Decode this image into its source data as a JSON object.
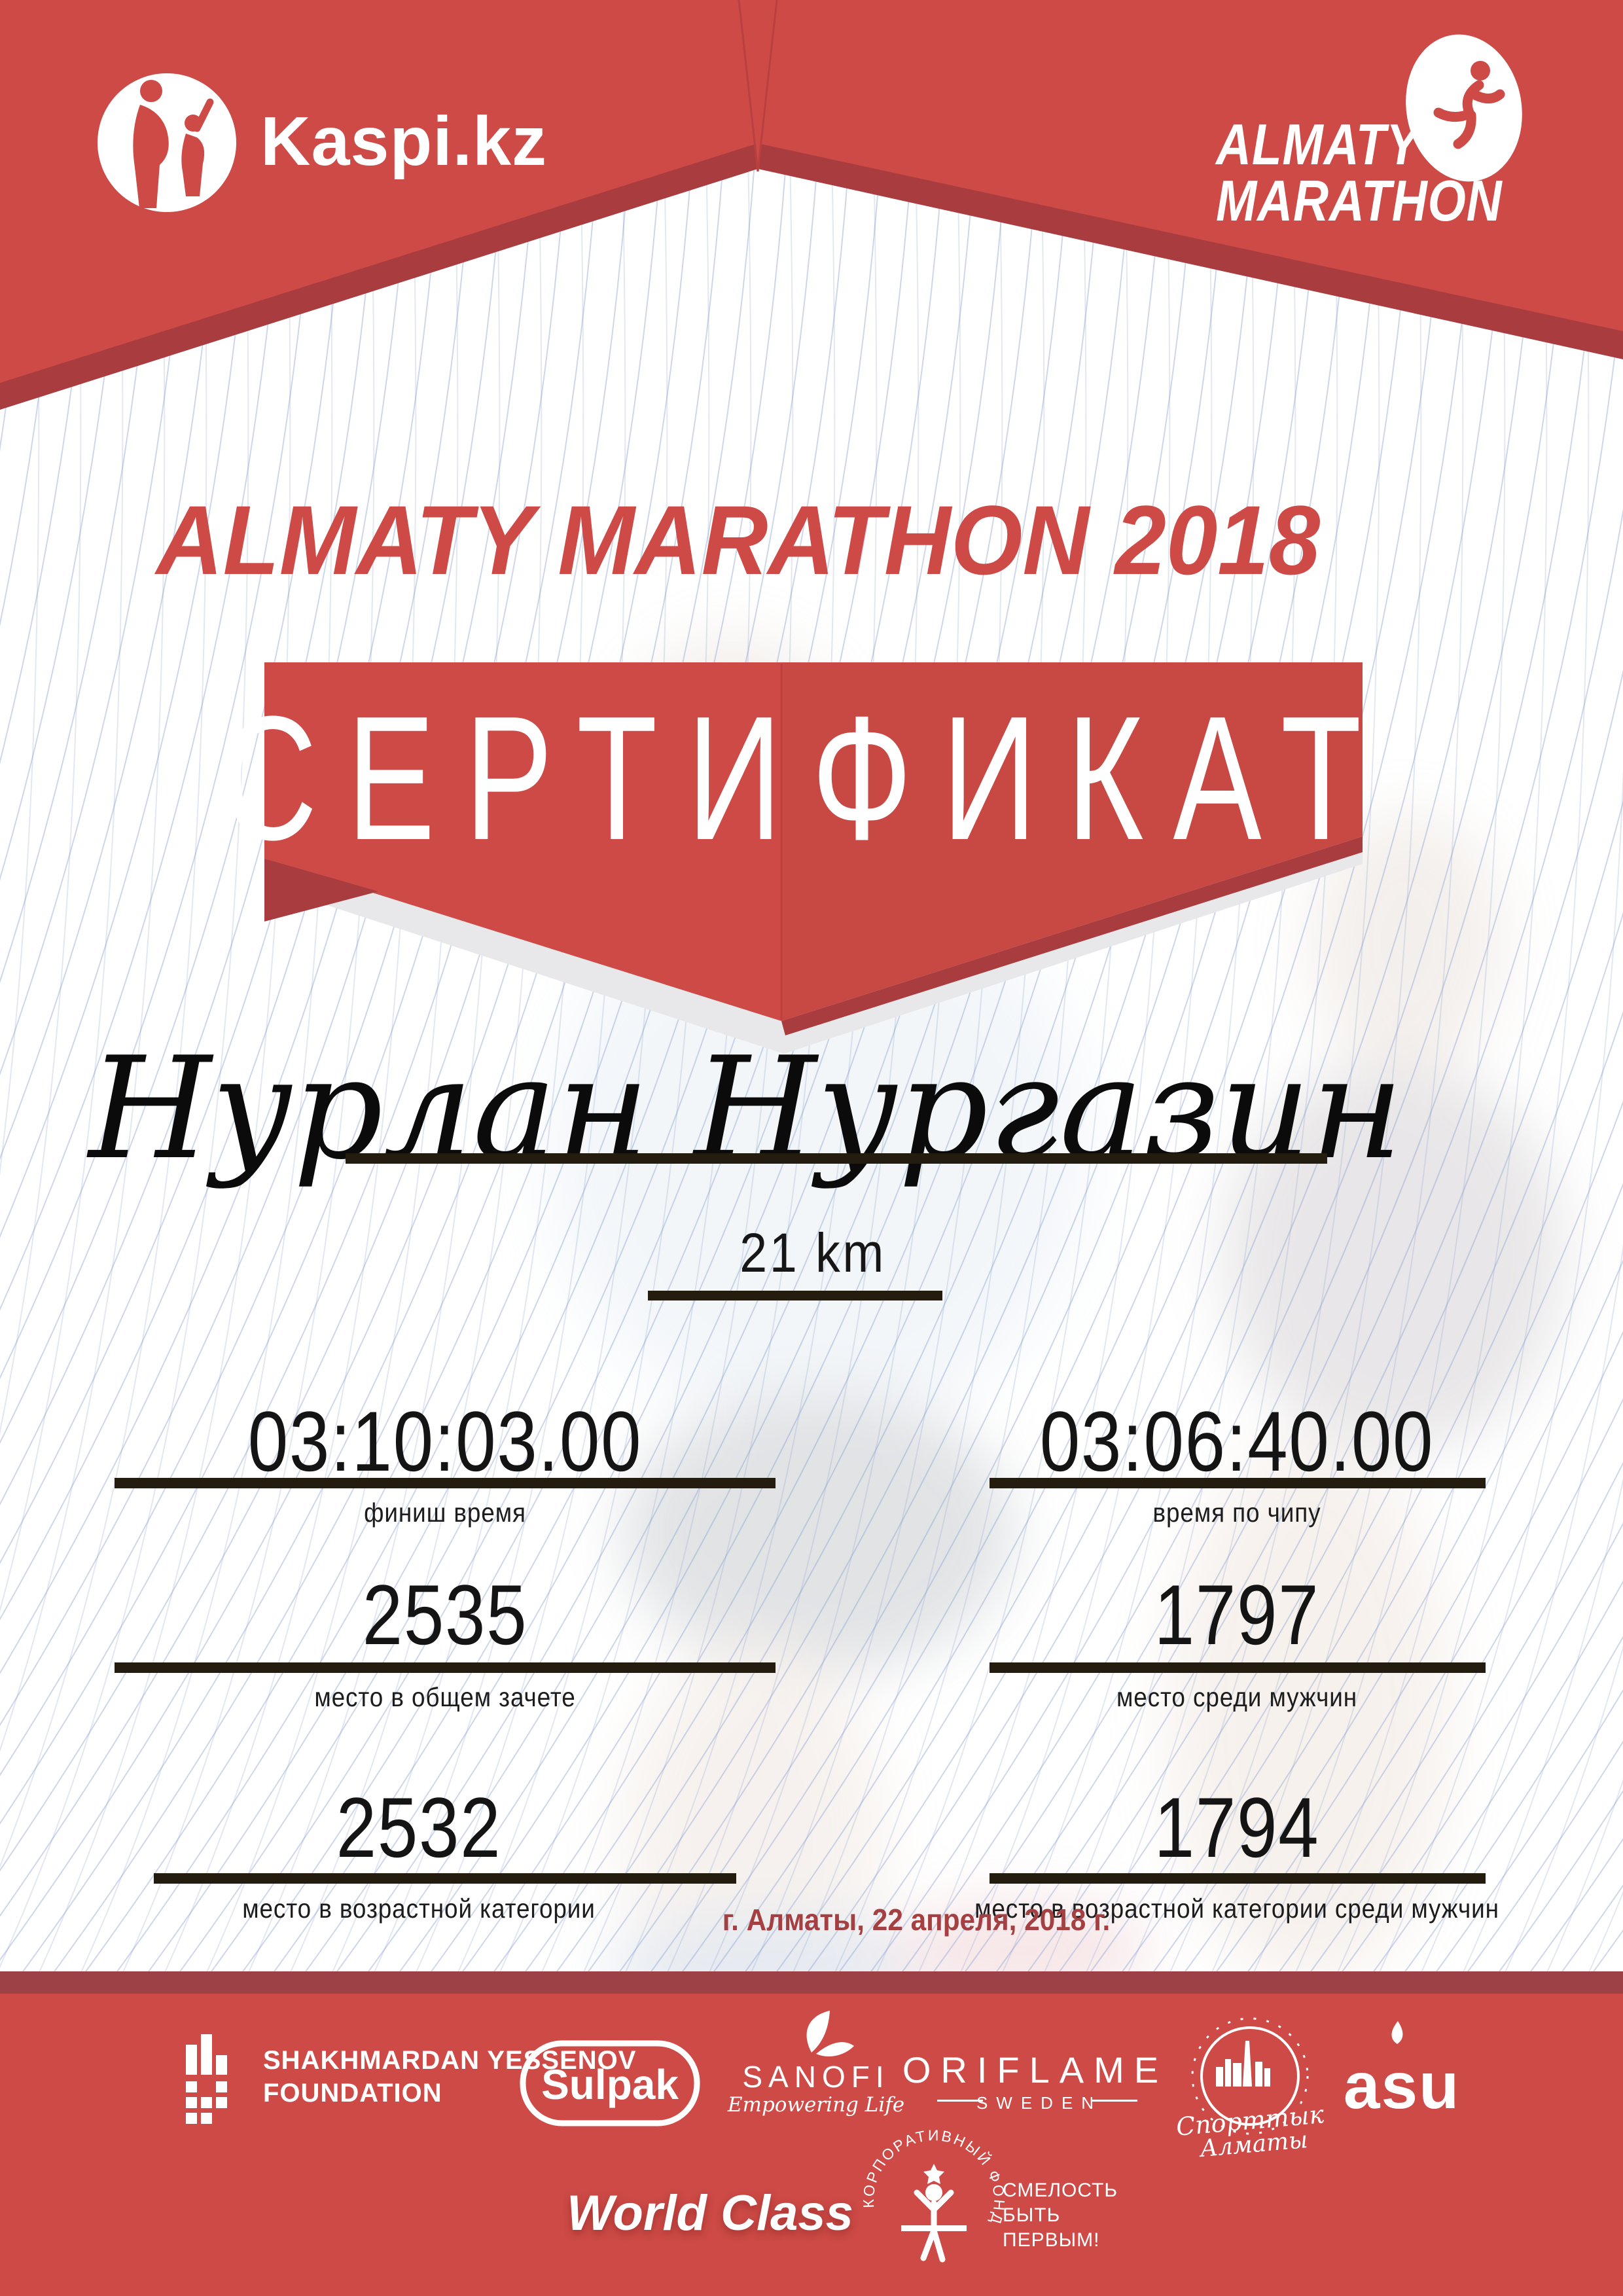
{
  "page": {
    "accent_red": "#CD4A46",
    "dark_red": "#A93C3F",
    "footer_strip": "#9E4147",
    "underline_color": "#251c10",
    "line_color": "#8AA0CC"
  },
  "header": {
    "kaspi": {
      "label": "Kaspi.kz"
    },
    "marathon_logo": {
      "line1": "ALMATY",
      "line2": "MARATHON"
    }
  },
  "title": "ALMATY MARATHON 2018",
  "certificate": {
    "label": "СЕРТИФИКАТ"
  },
  "recipient": {
    "name": "Нурлан Нургазин",
    "distance": "21 km"
  },
  "stats": {
    "finish_time": {
      "value": "03:10:03.00",
      "label": "финиш время"
    },
    "chip_time": {
      "value": "03:06:40.00",
      "label": "время по чипу"
    },
    "overall_place": {
      "value": "2535",
      "label": "место в общем зачете"
    },
    "men_place": {
      "value": "1797",
      "label": "место среди мужчин"
    },
    "age_place": {
      "value": "2532",
      "label": "место в возрастной категории"
    },
    "age_men_place": {
      "value": "1794",
      "label": "место в возрастной категории среди мужчин"
    }
  },
  "date_line": "г. Алматы, 22 апреля, 2018 г.",
  "footer": {
    "yessenov": {
      "line1": "SHAKHMARDAN YESSENOV",
      "line2": "FOUNDATION"
    },
    "sulpak": {
      "label": "Sulpak"
    },
    "sanofi": {
      "label": "SANOFI",
      "tagline": "Empowering Life"
    },
    "oriflame": {
      "label": "ORIFLAME",
      "subline": "SWEDEN"
    },
    "sport_almaty": {
      "word1": "Спорттык",
      "word2": "Алматы"
    },
    "asu": {
      "label": "asu"
    },
    "world_class": {
      "label": "World Class"
    },
    "fond": {
      "arc_text": "КОРПОРАТИВНЫЙ ФОНД",
      "line1": "СМЕЛОСТЬ",
      "line2": "БЫТЬ",
      "line3": "ПЕРВЫМ!"
    }
  }
}
